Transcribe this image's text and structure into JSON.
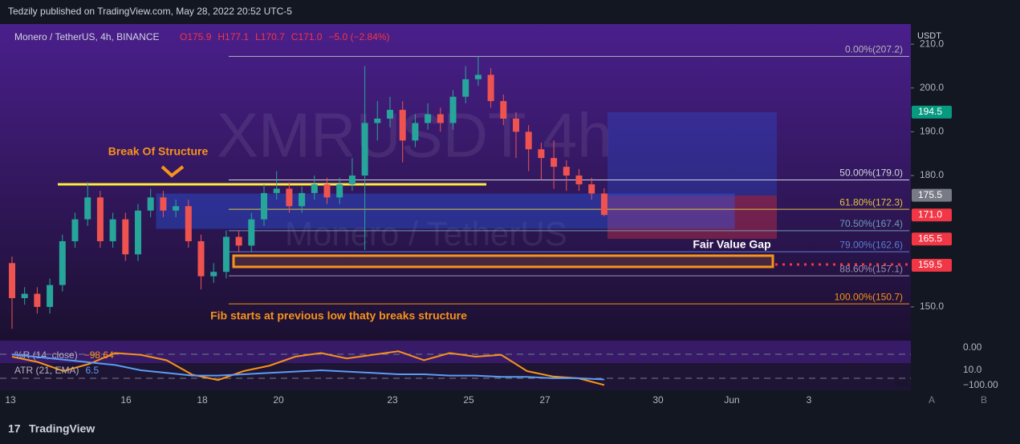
{
  "header": "Tedzily published on TradingView.com, May 28, 2022 20:52 UTC-5",
  "footer": "TradingView",
  "chart_data": {
    "type": "candlestick",
    "legend_title": "Monero / TetherUS, 4h, BINANCE",
    "legend_values": [
      "O175.9",
      "H177.1",
      "L170.7",
      "C171.0",
      "−5.0 (−2.84%)"
    ],
    "watermark": "XMRUSDT 4h",
    "watermark_sub": "Monero / TetherUS",
    "currency": "USDT",
    "ylim": [
      142.3,
      214.6
    ],
    "yticks": [
      {
        "value": 150,
        "label": "150.0"
      },
      {
        "value": 180,
        "label": "180.0"
      },
      {
        "value": 190,
        "label": "190.0"
      },
      {
        "value": 200,
        "label": "200.0"
      },
      {
        "value": 210,
        "label": "210.0"
      }
    ],
    "xtick_labels": [
      "13",
      "16",
      "18",
      "20",
      "23",
      "25",
      "27",
      "30",
      "Jun",
      "3"
    ],
    "candles": {
      "open": [
        160,
        152,
        153,
        150,
        155,
        165,
        170,
        175,
        165,
        170,
        162,
        172,
        175,
        172,
        173,
        165,
        157,
        158,
        166,
        164,
        170,
        176,
        177,
        173,
        176,
        178,
        175,
        178,
        180,
        192,
        193,
        195,
        188,
        192,
        194,
        192,
        198,
        202,
        203,
        197,
        193,
        190,
        186,
        184,
        182,
        180,
        178,
        175.9
      ],
      "high": [
        161.5,
        154.5,
        154.5,
        156.5,
        166.5,
        171.5,
        178.5,
        176.5,
        171.5,
        171.5,
        173.5,
        177,
        176.5,
        174.5,
        174.5,
        166.5,
        160,
        167.5,
        167.5,
        171.5,
        178,
        181,
        178.5,
        177.5,
        180,
        179.5,
        179.5,
        184,
        205,
        197,
        198,
        197,
        194,
        196.5,
        195.5,
        199.5,
        205,
        207.2,
        204.5,
        198.5,
        194.5,
        191.5,
        187.5,
        188,
        183.5,
        181.5,
        179.5,
        177.1
      ],
      "low": [
        145,
        150.5,
        148.5,
        148.5,
        153.5,
        163.5,
        168.5,
        163.5,
        163.5,
        160.5,
        160.5,
        170.5,
        170.5,
        170.5,
        163.5,
        154,
        155.5,
        156.5,
        162.5,
        162.5,
        168.5,
        174.5,
        171.5,
        171.5,
        174.5,
        173.5,
        173.5,
        176.5,
        163,
        188,
        191,
        183,
        186.5,
        190.5,
        190,
        190.5,
        196.5,
        200.5,
        195.5,
        191.5,
        184,
        181,
        179,
        177,
        176.5,
        176.5,
        174.5,
        170.7
      ],
      "close": [
        152,
        153,
        150,
        155,
        165,
        170,
        175,
        165,
        170,
        162,
        172,
        175,
        172,
        173,
        165,
        157,
        158,
        166,
        164,
        170,
        176,
        177,
        173,
        176,
        178,
        175,
        178,
        180,
        192,
        193,
        195,
        188,
        192,
        194,
        192,
        198,
        202,
        203,
        197,
        193,
        190,
        186,
        184,
        182,
        180,
        178,
        175.9,
        171
      ]
    },
    "up_color": "#26a69a",
    "down_color": "#ef5350",
    "fib_levels": [
      {
        "value": 207.2,
        "label": "0.00%(207.2)",
        "color": "#b2b5be"
      },
      {
        "value": 179,
        "label": "50.00%(179.0)",
        "color": "#d1d4dc"
      },
      {
        "value": 172.3,
        "label": "61.80%(172.3)",
        "color": "#e0c341"
      },
      {
        "value": 167.4,
        "label": "70.50%(167.4)",
        "color": "#6d9bb5"
      },
      {
        "value": 162.6,
        "label": "79.00%(162.6)",
        "color": "#5b7fd6"
      },
      {
        "value": 157.1,
        "label": "88.60%(157.1)",
        "color": "#9c8fb0"
      },
      {
        "value": 150.7,
        "label": "100.00%(150.7)",
        "color": "#f7931a"
      }
    ],
    "price_labels": [
      {
        "value": 194.5,
        "label": "194.5",
        "color": "#089981"
      },
      {
        "value": 175.5,
        "label": "175.5",
        "color": "#787b86"
      },
      {
        "value": 171,
        "label": "171.0",
        "color": "#f23645"
      },
      {
        "value": 165.5,
        "label": "165.5",
        "color": "#f23645"
      },
      {
        "value": 159.5,
        "label": "159.5",
        "color": "#f23645"
      }
    ],
    "annotations": [
      "Break Of Structure",
      "Fair Value Gap",
      "Fib starts at previous low thaty breaks structure"
    ],
    "indicators": [
      {
        "name": "%R (14, close)",
        "value_label": "−98.64",
        "color": "#f7931a",
        "values": [
          -20,
          -35,
          -60,
          -40,
          -10,
          -15,
          -30,
          -70,
          -85,
          -60,
          -45,
          -20,
          -10,
          -25,
          -15,
          -5,
          -30,
          -10,
          -20,
          -15,
          -60,
          -75,
          -80,
          -98.64
        ]
      },
      {
        "name": "ATR (21, EMA)",
        "value_label": "6.5",
        "color": "#5b9cf6",
        "values": [
          16,
          15,
          14,
          13,
          12,
          10,
          9,
          8,
          8,
          8.5,
          9,
          9.5,
          10,
          9.5,
          9,
          8.5,
          8.5,
          8,
          8,
          7.5,
          7.5,
          7,
          7,
          6.5
        ]
      }
    ],
    "indicator_axis_labels": [
      "0.00",
      "10.0",
      "−100.00"
    ],
    "indicator_tag": "%R",
    "buttons": [
      "A",
      "B"
    ]
  }
}
